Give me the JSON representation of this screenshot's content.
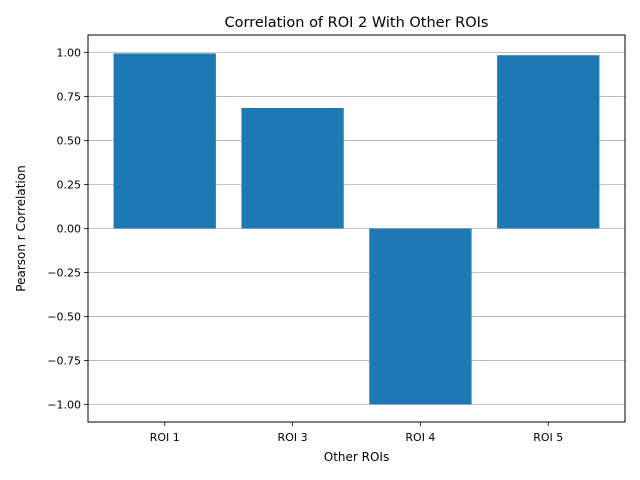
{
  "chart_data": {
    "type": "bar",
    "title": "Correlation of ROI 2 With Other ROIs",
    "xlabel": "Other ROIs",
    "ylabel": "Pearson r Correlation",
    "categories": [
      "ROI 1",
      "ROI 3",
      "ROI 4",
      "ROI 5"
    ],
    "values": [
      0.995,
      0.685,
      -1.0,
      0.985
    ],
    "ylim": [
      -1.1,
      1.1
    ],
    "yticks": [
      1.0,
      0.75,
      0.5,
      0.25,
      0.0,
      -0.25,
      -0.5,
      -0.75,
      -1.0
    ],
    "ytick_labels": [
      "1.00",
      "0.75",
      "0.50",
      "0.25",
      "0.00",
      "−0.25",
      "−0.50",
      "−0.75",
      "−1.00"
    ],
    "grid": "y-major",
    "legend": "none",
    "bar_color": "#1f77b4",
    "grid_color": "#b0b0b0"
  }
}
